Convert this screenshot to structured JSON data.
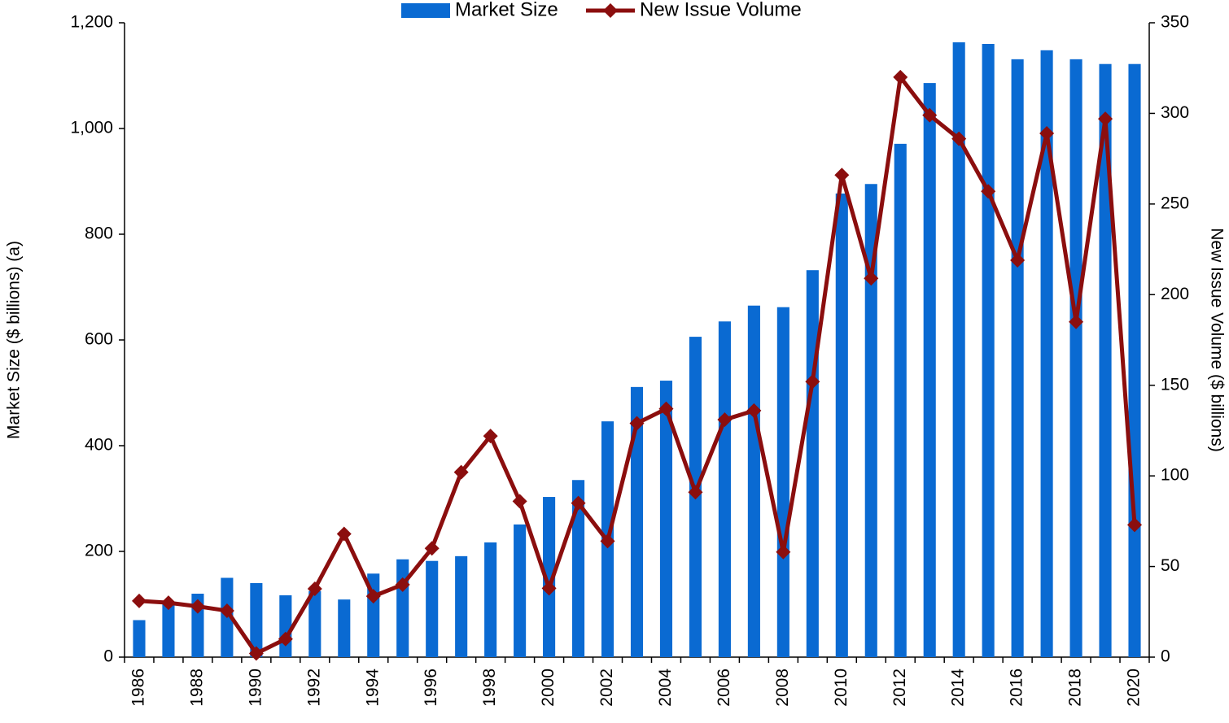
{
  "chart_data": {
    "type": "bar_line",
    "categories": [
      "1986",
      null,
      "1988",
      null,
      "1990",
      null,
      "1992",
      null,
      "1994",
      null,
      "1996",
      null,
      "1998",
      null,
      "2000",
      null,
      "2002",
      null,
      "2004",
      null,
      "2006",
      null,
      "2008",
      null,
      "2010",
      null,
      "2012",
      null,
      "2014",
      null,
      "2016",
      null,
      "2018",
      null,
      "2020"
    ],
    "series": [
      {
        "name": "Market Size",
        "color": "#0a6ad2",
        "type": "bar",
        "values": [
          70,
          100,
          120,
          150,
          140,
          117,
          125,
          109,
          158,
          185,
          182,
          191,
          217,
          251,
          303,
          335,
          446,
          511,
          523,
          606,
          635,
          665,
          662,
          732,
          877,
          895,
          971,
          1086,
          1163,
          1160,
          1131,
          1148,
          1131,
          1122,
          1122
        ]
      },
      {
        "name": "New Issue Volume",
        "color": "#8b0e0e",
        "type": "line",
        "axis": "y2",
        "values": [
          31,
          30,
          28,
          25.6,
          2,
          10,
          37.7,
          68,
          33.6,
          40,
          60,
          102,
          122,
          86,
          38,
          85,
          64,
          129,
          137,
          91,
          131,
          136,
          58,
          152,
          266,
          209,
          320,
          299,
          286,
          257,
          219,
          289,
          185,
          297,
          73
        ]
      }
    ],
    "ylabel": "Market Size ($ billions)  (a)",
    "y2label": "New Issue Volume ($ billions)",
    "ylim": [
      0,
      1200
    ],
    "yticks": [
      0,
      200,
      400,
      600,
      800,
      {
        "value": 1000,
        "label": "1,000"
      },
      {
        "value": 1200,
        "label": "1,200"
      }
    ],
    "y2lim": [
      0,
      350
    ],
    "y2ticks": [
      0,
      50,
      100,
      150,
      200,
      250,
      300,
      350
    ],
    "legend": "top"
  }
}
